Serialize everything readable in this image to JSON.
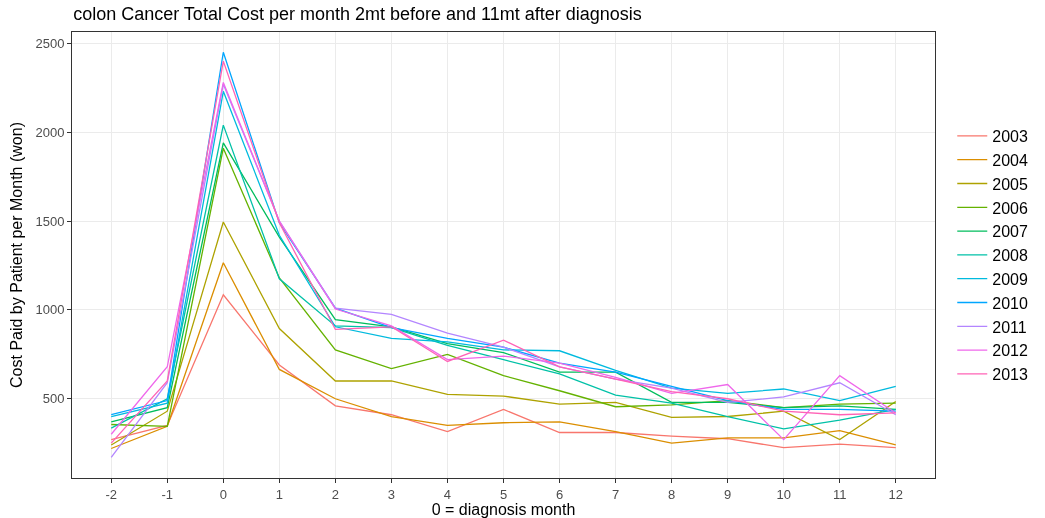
{
  "chart_data": {
    "type": "line",
    "title": "colon Cancer Total Cost per month 2mt before and 11mt after diagnosis",
    "xlabel": "0 = diagnosis month",
    "ylabel": "Cost Paid by Patient per Month (won)",
    "x": [
      -2,
      -1,
      0,
      1,
      2,
      3,
      4,
      5,
      6,
      7,
      8,
      9,
      10,
      11,
      12
    ],
    "xlim": [
      -2.7,
      12.7
    ],
    "xticks": [
      -2,
      -1,
      0,
      1,
      2,
      3,
      4,
      5,
      6,
      7,
      8,
      9,
      10,
      11,
      12
    ],
    "ylim": [
      54,
      2564
    ],
    "yticks": [
      500,
      1000,
      1500,
      2000,
      2500
    ],
    "grid": true,
    "legend": "right",
    "marker": "none",
    "line_style": "solid",
    "series": [
      {
        "name": "2003",
        "color": "#f8766d",
        "values": [
          270,
          350,
          1085,
          690,
          460,
          410,
          315,
          440,
          310,
          310,
          290,
          275,
          225,
          245,
          225
        ]
      },
      {
        "name": "2004",
        "color": "#db8e00",
        "values": [
          220,
          345,
          1265,
          665,
          500,
          400,
          350,
          365,
          370,
          315,
          250,
          280,
          280,
          320,
          240
        ]
      },
      {
        "name": "2005",
        "color": "#aea200",
        "values": [
          240,
          430,
          1495,
          895,
          600,
          600,
          525,
          515,
          470,
          480,
          395,
          400,
          430,
          270,
          485
        ]
      },
      {
        "name": "2006",
        "color": "#64b200",
        "values": [
          355,
          345,
          1910,
          1180,
          775,
          670,
          750,
          630,
          545,
          455,
          465,
          490,
          450,
          470,
          475
        ]
      },
      {
        "name": "2007",
        "color": "#00bd5c",
        "values": [
          370,
          450,
          1940,
          1410,
          945,
          905,
          810,
          760,
          650,
          650,
          480,
          480,
          450,
          460,
          440
        ]
      },
      {
        "name": "2008",
        "color": "#00c1a7",
        "values": [
          335,
          500,
          2040,
          1175,
          910,
          900,
          800,
          720,
          640,
          520,
          475,
          400,
          330,
          380,
          440
        ]
      },
      {
        "name": "2009",
        "color": "#00bade",
        "values": [
          400,
          475,
          2230,
          1420,
          905,
          840,
          820,
          775,
          770,
          660,
          560,
          530,
          555,
          490,
          570
        ]
      },
      {
        "name": "2010",
        "color": "#00a6ff",
        "values": [
          410,
          490,
          2450,
          1490,
          1010,
          900,
          840,
          790,
          700,
          650,
          570,
          490,
          440,
          440,
          430
        ]
      },
      {
        "name": "2011",
        "color": "#b385ff",
        "values": [
          170,
          590,
          2270,
          1500,
          1010,
          975,
          870,
          790,
          680,
          610,
          560,
          480,
          510,
          590,
          410
        ]
      },
      {
        "name": "2012",
        "color": "#ef67eb",
        "values": [
          300,
          680,
          2280,
          1500,
          1005,
          910,
          720,
          740,
          700,
          620,
          530,
          580,
          270,
          630,
          420
        ]
      },
      {
        "name": "2013",
        "color": "#ff63b6",
        "values": [
          250,
          600,
          2400,
          1490,
          890,
          905,
          710,
          830,
          680,
          610,
          540,
          500,
          430,
          410,
          420
        ]
      }
    ]
  }
}
